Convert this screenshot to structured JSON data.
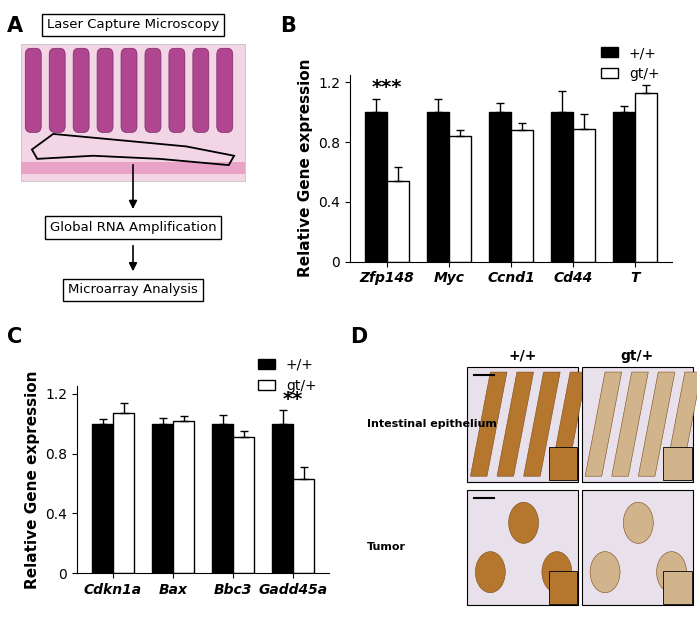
{
  "chart_data": [
    {
      "type": "bar",
      "panel": "B",
      "y_label": "Relative Gene expression",
      "categories": [
        "Zfp148",
        "Myc",
        "Ccnd1",
        "Cd44",
        "T"
      ],
      "series": [
        {
          "name": "+/+",
          "color": "#000000",
          "values": [
            1.0,
            1.0,
            1.0,
            1.0,
            1.0
          ],
          "errors": [
            0.09,
            0.09,
            0.06,
            0.14,
            0.04
          ]
        },
        {
          "name": "gt/+",
          "color": "#ffffff",
          "values": [
            0.54,
            0.84,
            0.88,
            0.89,
            1.13
          ],
          "errors": [
            0.09,
            0.04,
            0.05,
            0.1,
            0.05
          ]
        }
      ],
      "annotations": [
        {
          "text": "***",
          "category": "Zfp148"
        }
      ],
      "ylim": [
        0,
        1.25
      ],
      "yticks": [
        0,
        0.4,
        0.8,
        1.2
      ],
      "legend": "upper right"
    },
    {
      "type": "bar",
      "panel": "C",
      "y_label": "Relative Gene expression",
      "categories": [
        "Cdkn1a",
        "Bax",
        "Bbc3",
        "Gadd45a"
      ],
      "series": [
        {
          "name": "+/+",
          "color": "#000000",
          "values": [
            1.0,
            1.0,
            1.0,
            1.0
          ],
          "errors": [
            0.03,
            0.04,
            0.06,
            0.09
          ]
        },
        {
          "name": "gt/+",
          "color": "#ffffff",
          "values": [
            1.07,
            1.02,
            0.91,
            0.63
          ],
          "errors": [
            0.07,
            0.03,
            0.04,
            0.08
          ]
        }
      ],
      "annotations": [
        {
          "text": "**",
          "category": "Gadd45a"
        }
      ],
      "ylim": [
        0,
        1.25
      ],
      "yticks": [
        0,
        0.4,
        0.8,
        1.2
      ],
      "legend": "upper right"
    }
  ],
  "diagram": {
    "panel": "A",
    "steps": [
      "Laser Capture Microscopy",
      "Global RNA Amplification",
      "Microarray Analysis"
    ]
  },
  "images": {
    "panel": "D",
    "columns": [
      "+/+",
      "gt/+"
    ],
    "rows": [
      "Intestinal epithelium",
      "Tumor"
    ]
  }
}
